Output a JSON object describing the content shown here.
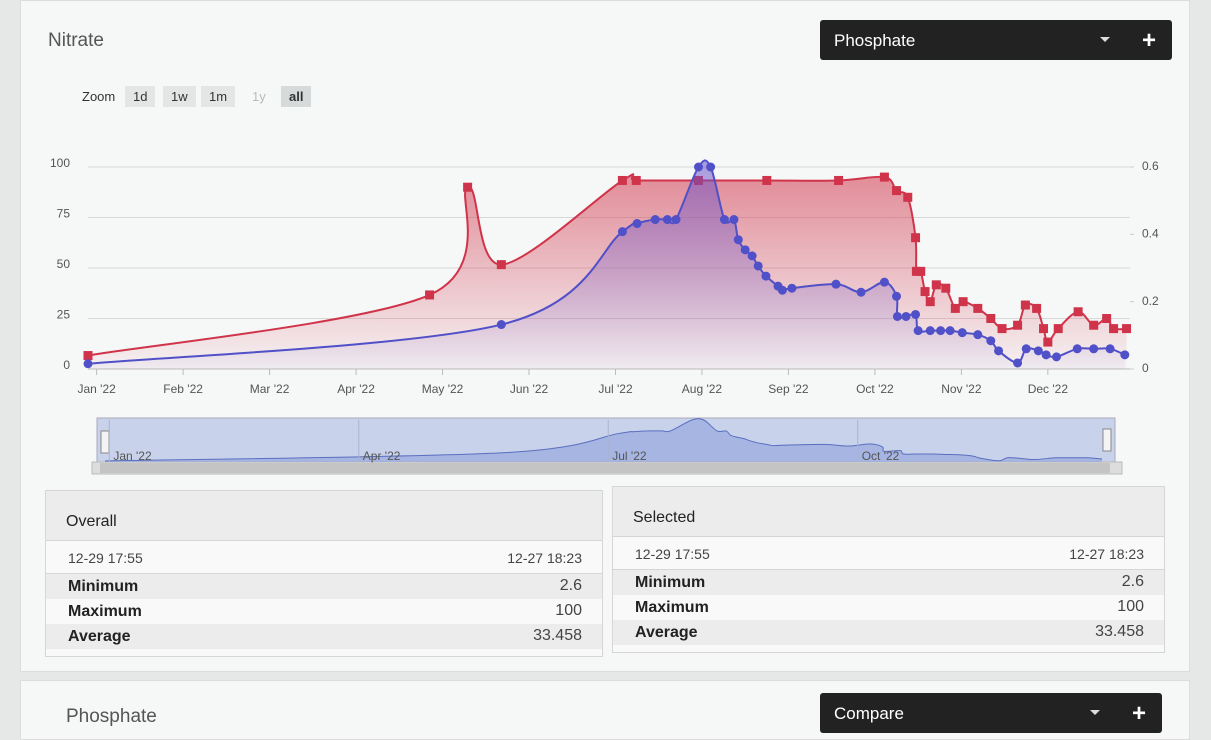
{
  "header": {
    "title": "Nitrate",
    "select": "Phosphate",
    "add": "+"
  },
  "zoom": {
    "label": "Zoom",
    "buttons": [
      "1d",
      "1w",
      "1m",
      "1y",
      "all"
    ]
  },
  "chart_data": {
    "type": "line",
    "xlim": [
      -0.1,
      11.95
    ],
    "xticks": [
      {
        "value": 0,
        "label": "Jan '22"
      },
      {
        "value": 1,
        "label": "Feb '22"
      },
      {
        "value": 2,
        "label": "Mar '22"
      },
      {
        "value": 3,
        "label": "Apr '22"
      },
      {
        "value": 4,
        "label": "May '22"
      },
      {
        "value": 5,
        "label": "Jun '22"
      },
      {
        "value": 6,
        "label": "Jul '22"
      },
      {
        "value": 7,
        "label": "Aug '22"
      },
      {
        "value": 8,
        "label": "Sep '22"
      },
      {
        "value": 9,
        "label": "Oct '22"
      },
      {
        "value": 10,
        "label": "Nov '22"
      },
      {
        "value": 11,
        "label": "Dec '22"
      }
    ],
    "ylim": [
      0,
      100
    ],
    "yticks": [
      0,
      25,
      50,
      75,
      100
    ],
    "y2lim": [
      0,
      0.6
    ],
    "y2ticks": [
      0,
      0.2,
      0.4,
      0.6
    ],
    "grid": true,
    "series": [
      {
        "color": "#5050c8",
        "marker": "circle",
        "x": [
          -0.1,
          4.68,
          6.08,
          6.25,
          6.46,
          6.6,
          6.7,
          6.96,
          7.1,
          7.26,
          7.37,
          7.42,
          7.5,
          7.58,
          7.65,
          7.74,
          7.88,
          7.93,
          8.04,
          8.55,
          8.84,
          9.11,
          9.25,
          9.26,
          9.36,
          9.47,
          9.5,
          9.64,
          9.76,
          9.87,
          10.01,
          10.19,
          10.34,
          10.43,
          10.65,
          10.75,
          10.89,
          10.98,
          11.1,
          11.34,
          11.53,
          11.72,
          11.89
        ],
        "values": [
          2.6,
          22,
          68,
          72,
          74,
          74,
          74,
          100,
          100,
          74,
          74,
          64,
          59,
          56,
          51,
          46,
          41,
          39,
          40,
          42,
          38,
          43,
          36,
          26,
          26,
          27,
          19,
          19,
          19,
          19,
          18,
          17,
          14,
          9,
          3,
          10,
          9,
          7,
          6,
          10,
          10,
          10,
          7
        ]
      },
      {
        "color": "#d0344a",
        "marker": "square",
        "axis": "y2",
        "x": [
          -0.1,
          3.85,
          4.29,
          4.68,
          6.08,
          6.24,
          6.96,
          7.75,
          8.58,
          9.11,
          9.25,
          9.38,
          9.47,
          9.48,
          9.53,
          9.58,
          9.64,
          9.71,
          9.82,
          9.93,
          10.02,
          10.19,
          10.34,
          10.47,
          10.65,
          10.74,
          10.87,
          10.95,
          11.0,
          11.12,
          11.35,
          11.53,
          11.68,
          11.76,
          11.91
        ],
        "values": [
          0.04,
          0.22,
          0.54,
          0.31,
          0.56,
          0.56,
          0.56,
          0.56,
          0.56,
          0.57,
          0.53,
          0.51,
          0.39,
          0.29,
          0.29,
          0.23,
          0.2,
          0.25,
          0.24,
          0.18,
          0.2,
          0.18,
          0.15,
          0.12,
          0.13,
          0.19,
          0.18,
          0.12,
          0.08,
          0.12,
          0.17,
          0.13,
          0.15,
          0.12,
          0.12
        ]
      }
    ],
    "navigator_ticks": [
      {
        "value": 0,
        "label": "Jan '22"
      },
      {
        "value": 3,
        "label": "Apr '22"
      },
      {
        "value": 6,
        "label": "Jul '22"
      },
      {
        "value": 9,
        "label": "Oct '22"
      }
    ]
  },
  "stats": [
    {
      "title": "Overall",
      "start": "12-29 17:55",
      "end": "12-27 18:23",
      "rows": [
        {
          "label": "Minimum",
          "value": 2.6
        },
        {
          "label": "Maximum",
          "value": 100
        },
        {
          "label": "Average",
          "value": 33.458
        }
      ]
    },
    {
      "title": "Selected",
      "start": "12-29 17:55",
      "end": "12-27 18:23",
      "rows": [
        {
          "label": "Minimum",
          "value": 2.6
        },
        {
          "label": "Maximum",
          "value": 100
        },
        {
          "label": "Average",
          "value": 33.458
        }
      ]
    }
  ],
  "next_panel": {
    "title": "Phosphate",
    "select": "Compare",
    "add": "+"
  }
}
